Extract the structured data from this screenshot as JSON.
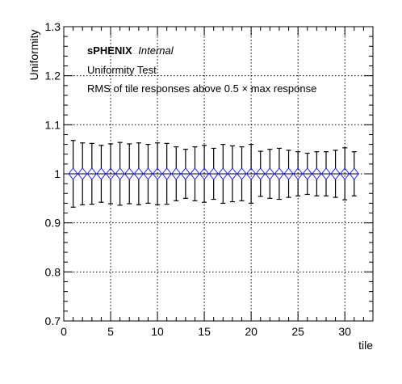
{
  "chart_data": {
    "type": "scatter",
    "title": "",
    "xlabel": "tile",
    "ylabel": "Uniformity",
    "xlim": [
      0,
      33
    ],
    "ylim": [
      0.7,
      1.3
    ],
    "x_ticks": [
      "0",
      "5",
      "10",
      "15",
      "20",
      "25",
      "30"
    ],
    "y_ticks": [
      "0.7",
      "0.8",
      "0.9",
      "1",
      "1.1",
      "1.2",
      "1.3"
    ],
    "grid": true,
    "marker": "open-diamond",
    "marker_color": "#1a1aff",
    "errorbar_color": "#000000",
    "annotations": {
      "experiment": "sPHENIX",
      "status": "Internal",
      "line1": "Uniformity Test",
      "line2": "RMS of tile responses above 0.5 × max response"
    },
    "series": [
      {
        "x": [
          1,
          2,
          3,
          4,
          5,
          6,
          7,
          8,
          9,
          10,
          11,
          12,
          13,
          14,
          15,
          16,
          17,
          18,
          19,
          20,
          21,
          22,
          23,
          24,
          25,
          26,
          27,
          28,
          29,
          30,
          31
        ],
        "y": [
          1,
          1,
          1,
          1,
          1,
          1,
          1,
          1,
          1,
          1,
          1,
          1,
          1,
          1,
          1,
          1,
          1,
          1,
          1,
          1,
          1,
          1,
          1,
          1,
          1,
          1,
          1,
          1,
          1,
          1,
          1
        ],
        "err": [
          0.068,
          0.063,
          0.062,
          0.058,
          0.061,
          0.064,
          0.061,
          0.063,
          0.06,
          0.063,
          0.062,
          0.055,
          0.05,
          0.055,
          0.058,
          0.052,
          0.06,
          0.057,
          0.055,
          0.06,
          0.046,
          0.05,
          0.052,
          0.048,
          0.045,
          0.042,
          0.045,
          0.045,
          0.048,
          0.053,
          0.045
        ]
      }
    ]
  }
}
